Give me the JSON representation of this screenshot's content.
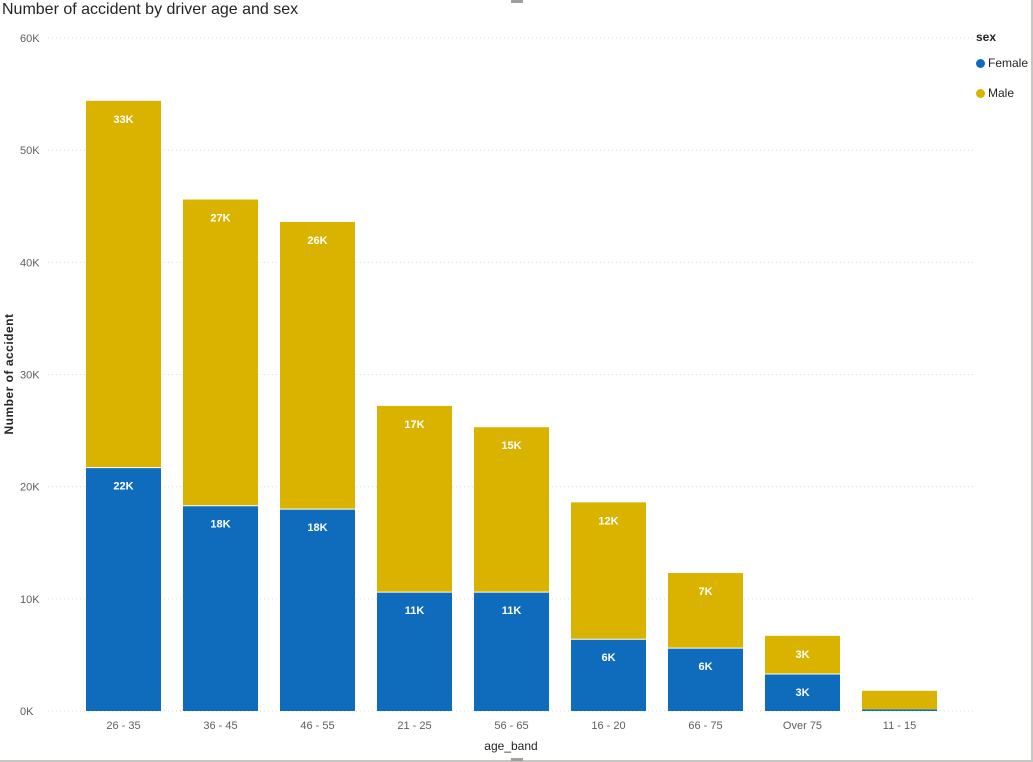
{
  "chart_data": {
    "type": "bar",
    "stacked": true,
    "title": "Number of accident by driver age and sex",
    "xlabel": "age_band",
    "ylabel": "Number of accident",
    "ylim": [
      0,
      60000
    ],
    "yticks": [
      0,
      10000,
      20000,
      30000,
      40000,
      50000,
      60000
    ],
    "ytick_labels": [
      "0K",
      "10K",
      "20K",
      "30K",
      "40K",
      "50K",
      "60K"
    ],
    "grid": true,
    "legend_title": "sex",
    "legend_position": "top-right",
    "categories": [
      "26 - 35",
      "36 - 45",
      "46 - 55",
      "21 - 25",
      "56 - 65",
      "16 - 20",
      "66 - 75",
      "Over 75",
      "11 - 15"
    ],
    "series": [
      {
        "name": "Female",
        "color": "#118dff",
        "fill": "#0f6cbd",
        "values": [
          21700,
          18300,
          18000,
          10600,
          10600,
          6400,
          5600,
          3300,
          150
        ],
        "labels": [
          "22K",
          "18K",
          "18K",
          "11K",
          "11K",
          "6K",
          "6K",
          "3K",
          ""
        ]
      },
      {
        "name": "Male",
        "color": "#d9b300",
        "fill": "#d9b300",
        "values": [
          32700,
          27300,
          25600,
          16600,
          14700,
          12200,
          6700,
          3400,
          1650
        ],
        "labels": [
          "33K",
          "27K",
          "26K",
          "17K",
          "15K",
          "12K",
          "7K",
          "3K",
          ""
        ]
      }
    ]
  }
}
